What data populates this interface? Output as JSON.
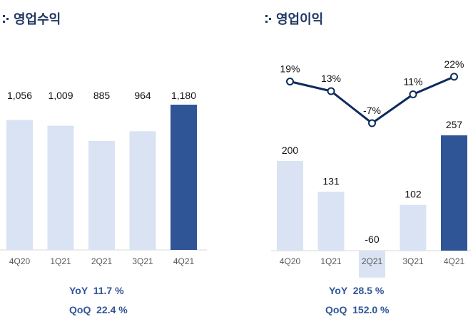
{
  "colors": {
    "bar_light": "#dae3f3",
    "bar_highlight": "#2f5597",
    "line": "#0d2a5c",
    "title": "#1f3864",
    "stat": "#2f5597"
  },
  "left": {
    "title": "영업수익",
    "stats": [
      {
        "label": "YoY",
        "value": "11.7 %"
      },
      {
        "label": "QoQ",
        "value": "22.4 %"
      }
    ]
  },
  "right": {
    "title": "영업이익",
    "stats": [
      {
        "label": "YoY",
        "value": "28.5 %"
      },
      {
        "label": "QoQ",
        "value": "152.0 %"
      }
    ]
  },
  "chart_data": [
    {
      "type": "bar",
      "title": "영업수익",
      "categories": [
        "4Q20",
        "1Q21",
        "2Q21",
        "3Q21",
        "4Q21"
      ],
      "values": [
        1056,
        1009,
        885,
        964,
        1180
      ],
      "value_labels": [
        "1,056",
        "1,009",
        "885",
        "964",
        "1,180"
      ],
      "highlight_index": 4,
      "grid": false
    },
    {
      "type": "bar",
      "title": "영업이익",
      "categories": [
        "4Q20",
        "1Q21",
        "2Q21",
        "3Q21",
        "4Q21"
      ],
      "values": [
        200,
        131,
        -60,
        102,
        257
      ],
      "value_labels": [
        "200",
        "131",
        "-60",
        "102",
        "257"
      ],
      "highlight_index": 4,
      "grid": false,
      "margin_series": {
        "type": "line",
        "values": [
          19,
          13,
          -7,
          11,
          22
        ],
        "labels": [
          "19%",
          "13%",
          "-7%",
          "11%",
          "22%"
        ]
      }
    }
  ]
}
